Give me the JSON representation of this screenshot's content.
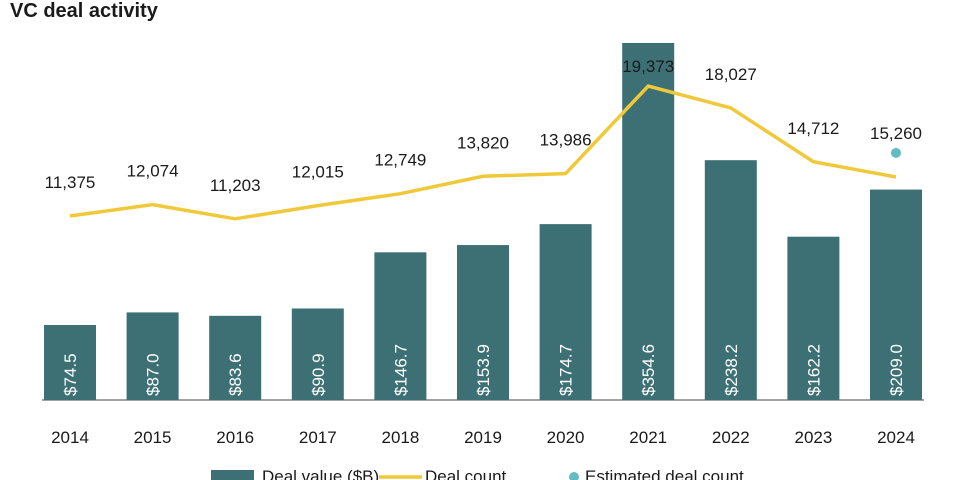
{
  "chart_data": {
    "type": "bar",
    "title": "VC deal activity",
    "categories": [
      "2014",
      "2015",
      "2016",
      "2017",
      "2018",
      "2019",
      "2020",
      "2021",
      "2022",
      "2023",
      "2024"
    ],
    "series": [
      {
        "name": "Deal value ($B)",
        "type": "bar",
        "color": "#3d7075",
        "values": [
          74.5,
          87.0,
          83.6,
          90.9,
          146.7,
          153.9,
          174.7,
          354.6,
          238.2,
          162.2,
          209.0
        ],
        "labels": [
          "$74.5",
          "$87.0",
          "$83.6",
          "$90.9",
          "$146.7",
          "$153.9",
          "$174.7",
          "$354.6",
          "$238.2",
          "$162.2",
          "$209.0"
        ]
      },
      {
        "name": "Deal count",
        "type": "line",
        "color": "#f0c93a",
        "values": [
          11375,
          12074,
          11203,
          12015,
          12749,
          13820,
          13986,
          19373,
          18027,
          14712,
          13775
        ],
        "labels": [
          "11,375",
          "12,074",
          "11,203",
          "12,015",
          "12,749",
          "13,820",
          "13,986",
          "19,373",
          "18,027",
          "14,712",
          null
        ]
      },
      {
        "name": "Estimated deal count",
        "type": "scatter",
        "color": "#63bcc4",
        "points": [
          {
            "x": "2024",
            "value": 15260,
            "label": "15,260"
          }
        ]
      }
    ],
    "xlabel": "",
    "ylabel": "",
    "legend": "bottom",
    "grid": false
  }
}
